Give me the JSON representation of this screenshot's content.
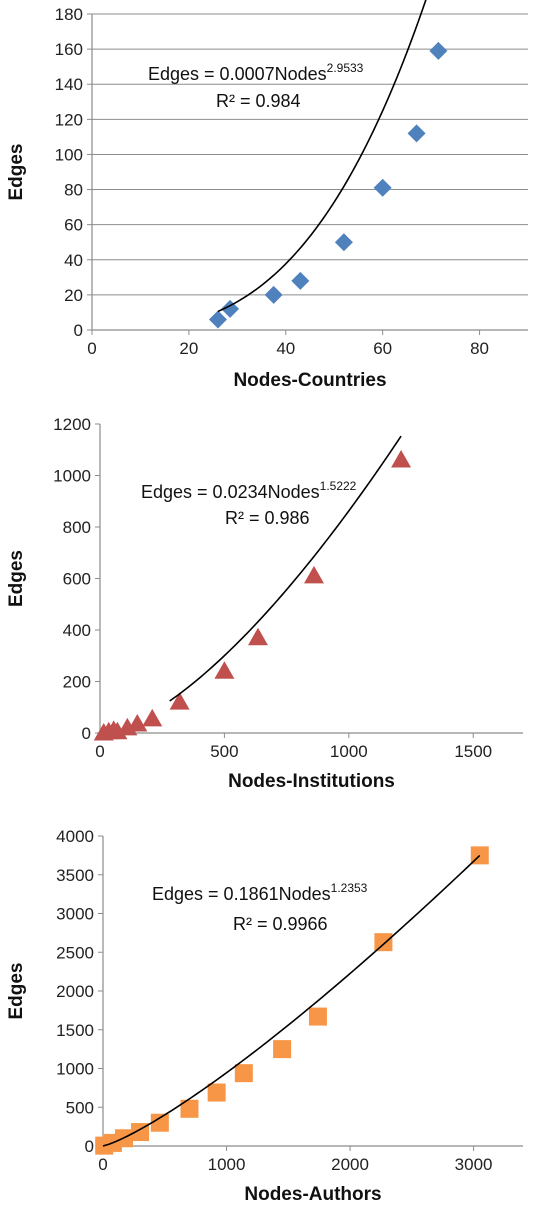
{
  "chart_data": [
    {
      "type": "scatter",
      "xlabel": "Nodes-Countries",
      "ylabel": "Edges",
      "xlim": [
        0,
        90
      ],
      "ylim": [
        0,
        180
      ],
      "xticks": [
        0,
        20,
        40,
        60,
        80
      ],
      "yticks": [
        0,
        20,
        40,
        60,
        80,
        100,
        120,
        140,
        160,
        180
      ],
      "grid": "horizontal",
      "marker": "diamond",
      "color": "#4f81bd",
      "points": [
        {
          "x": 26,
          "y": 6
        },
        {
          "x": 28.5,
          "y": 12
        },
        {
          "x": 37.5,
          "y": 20
        },
        {
          "x": 43,
          "y": 28
        },
        {
          "x": 52,
          "y": 50
        },
        {
          "x": 60,
          "y": 81
        },
        {
          "x": 67,
          "y": 112
        },
        {
          "x": 71.5,
          "y": 159
        }
      ],
      "trendline": {
        "type": "power",
        "coefficient": 0.0007,
        "exponent": 2.9533,
        "x_range": [
          26,
          72
        ]
      },
      "equation": {
        "text": "Edges = 0.0007Nodes",
        "exponent_text": "2.9533",
        "r2_text": "R² = 0.984"
      }
    },
    {
      "type": "scatter",
      "xlabel": "Nodes-Institutions",
      "ylabel": "Edges",
      "xlim": [
        0,
        1700
      ],
      "ylim": [
        0,
        1200
      ],
      "xticks": [
        0,
        500,
        1000,
        1500
      ],
      "yticks": [
        0,
        200,
        400,
        600,
        800,
        1000,
        1200
      ],
      "grid": "none",
      "marker": "triangle",
      "color": "#c0504d",
      "points": [
        {
          "x": 15,
          "y": 0
        },
        {
          "x": 35,
          "y": 5
        },
        {
          "x": 55,
          "y": 10
        },
        {
          "x": 70,
          "y": 5
        },
        {
          "x": 110,
          "y": 20
        },
        {
          "x": 150,
          "y": 35
        },
        {
          "x": 210,
          "y": 55
        },
        {
          "x": 320,
          "y": 120
        },
        {
          "x": 500,
          "y": 240
        },
        {
          "x": 635,
          "y": 370
        },
        {
          "x": 860,
          "y": 610
        },
        {
          "x": 1210,
          "y": 1060
        }
      ],
      "trendline": {
        "type": "power",
        "coefficient": 0.0234,
        "exponent": 1.5222,
        "x_range": [
          280,
          1210
        ]
      },
      "equation": {
        "text": "Edges = 0.0234Nodes",
        "exponent_text": "1.5222",
        "r2_text": "R² = 0.986"
      }
    },
    {
      "type": "scatter",
      "xlabel": "Nodes-Authors",
      "ylabel": "Edges",
      "xlim": [
        0,
        3400
      ],
      "ylim": [
        0,
        4000
      ],
      "xticks": [
        0,
        1000,
        2000,
        3000
      ],
      "yticks": [
        0,
        500,
        1000,
        1500,
        2000,
        2500,
        3000,
        3500,
        4000
      ],
      "grid": "none",
      "marker": "square",
      "color": "#f79646",
      "points": [
        {
          "x": 10,
          "y": 5
        },
        {
          "x": 80,
          "y": 40
        },
        {
          "x": 170,
          "y": 100
        },
        {
          "x": 300,
          "y": 180
        },
        {
          "x": 460,
          "y": 300
        },
        {
          "x": 700,
          "y": 480
        },
        {
          "x": 920,
          "y": 690
        },
        {
          "x": 1140,
          "y": 940
        },
        {
          "x": 1450,
          "y": 1250
        },
        {
          "x": 1740,
          "y": 1670
        },
        {
          "x": 2270,
          "y": 2630
        },
        {
          "x": 3050,
          "y": 3750
        }
      ],
      "trendline": {
        "type": "power",
        "coefficient": 0.1861,
        "exponent": 1.2353,
        "x_range": [
          0,
          3050
        ]
      },
      "equation": {
        "text": "Edges = 0.1861Nodes",
        "exponent_text": "1.2353",
        "r2_text": "R² = 0.9966"
      }
    }
  ]
}
